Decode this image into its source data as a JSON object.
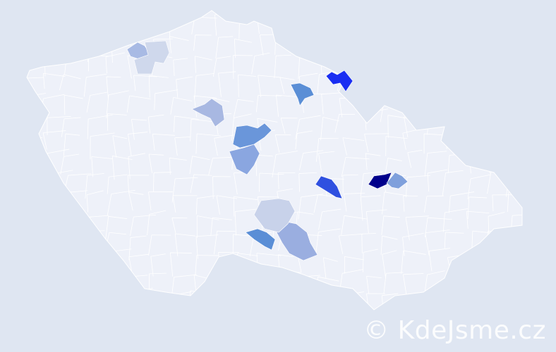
{
  "map": {
    "country_fill": "#eef1f9",
    "border_color": "#ffffff",
    "background": "#dfe6f2",
    "highlighted_regions": [
      {
        "color": "#00008b"
      },
      {
        "color": "#1a2ef2"
      },
      {
        "color": "#2f50e0"
      },
      {
        "color": "#5a8ed6"
      },
      {
        "color": "#6a96da"
      },
      {
        "color": "#5a8ed6"
      },
      {
        "color": "#8aa6e0"
      },
      {
        "color": "#9aaee0"
      },
      {
        "color": "#a8bae4"
      },
      {
        "color": "#c8d2ea"
      },
      {
        "color": "#a8b8e2"
      },
      {
        "color": "#cfd8ec"
      },
      {
        "color": "#7fa0dc"
      }
    ]
  },
  "watermark": "© KdeJsme.cz"
}
